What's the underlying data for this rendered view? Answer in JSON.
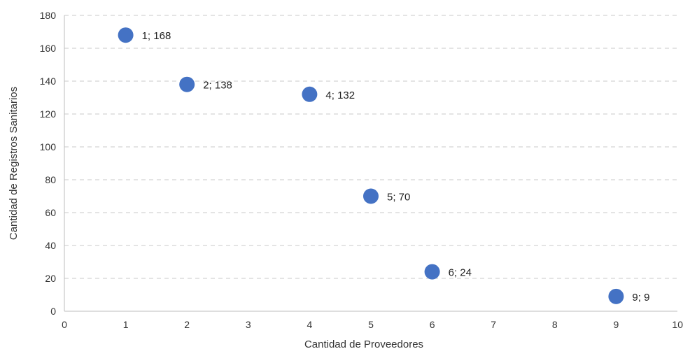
{
  "chart_data": {
    "type": "scatter",
    "title": "",
    "xlabel": "Cantidad de Proveedores",
    "ylabel": "Cantidad de Registros Sanitarios",
    "xlim": [
      0,
      10
    ],
    "ylim": [
      0,
      180
    ],
    "xticks": [
      0,
      1,
      2,
      3,
      4,
      5,
      6,
      7,
      8,
      9,
      10
    ],
    "yticks": [
      0,
      20,
      40,
      60,
      80,
      100,
      120,
      140,
      160,
      180
    ],
    "grid": "horizontal-dashed",
    "legend": "none",
    "marker_color": "#4472C4",
    "points": [
      {
        "x": 1,
        "y": 168,
        "label": "1; 168"
      },
      {
        "x": 2,
        "y": 138,
        "label": "2; 138"
      },
      {
        "x": 4,
        "y": 132,
        "label": "4; 132"
      },
      {
        "x": 5,
        "y": 70,
        "label": "5; 70"
      },
      {
        "x": 6,
        "y": 24,
        "label": "6; 24"
      },
      {
        "x": 9,
        "y": 9,
        "label": "9; 9"
      }
    ]
  }
}
